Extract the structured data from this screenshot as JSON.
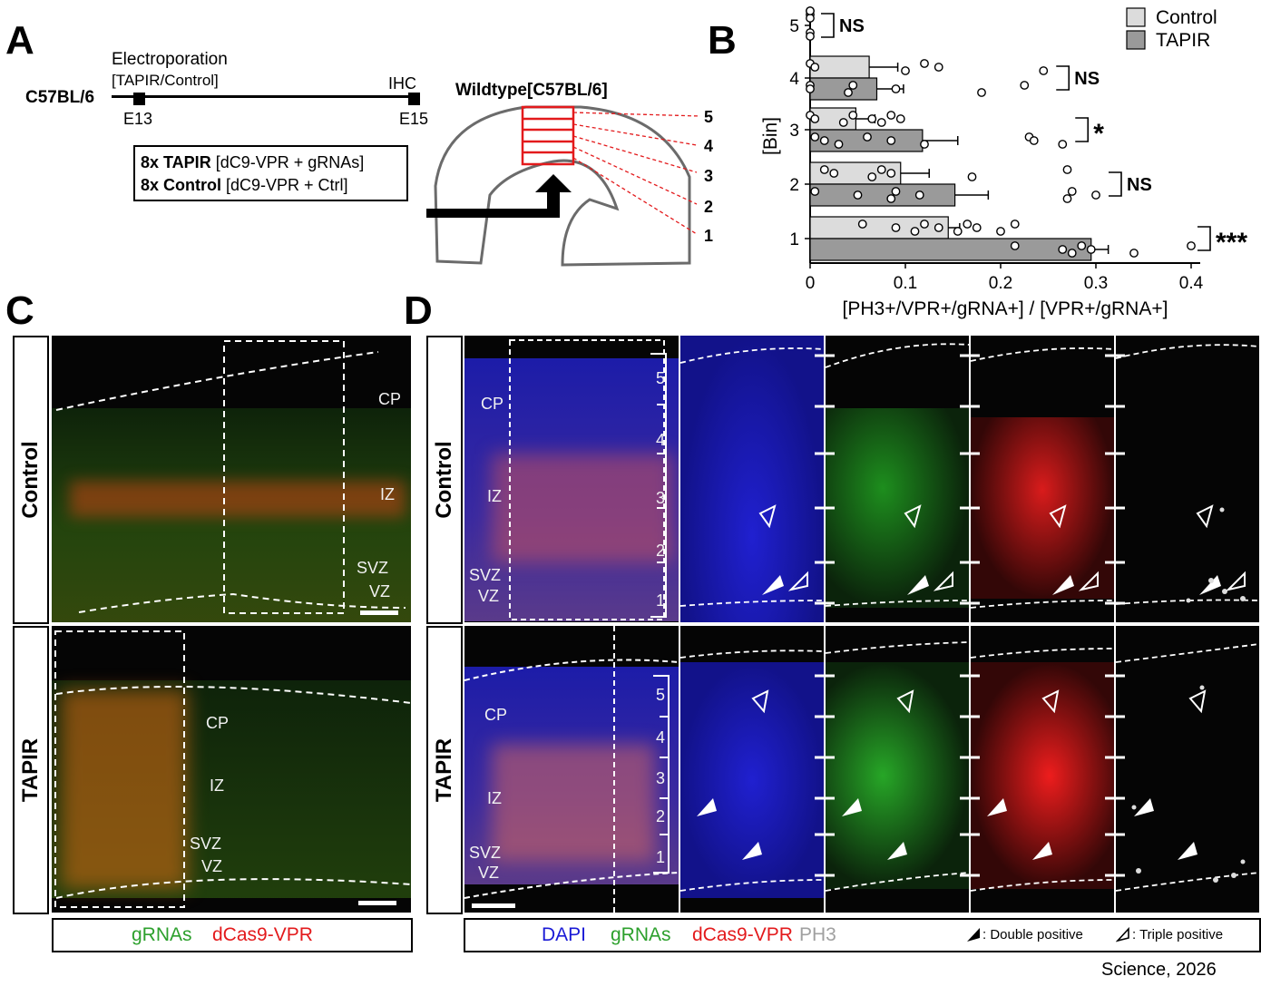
{
  "panels": {
    "a_label": "A",
    "b_label": "B",
    "c_label": "C",
    "d_label": "D"
  },
  "panel_a": {
    "strain": "C57BL/6",
    "electroporation": "Electroporation",
    "electroporation_sub": "[TAPIR/Control]",
    "ihc": "IHC",
    "e13": "E13",
    "e15": "E15",
    "tapir_bold": "8x TAPIR",
    "tapir_rest": " [dC9-VPR + gRNAs]",
    "control_bold": "8x Control",
    "control_rest": " [dC9-VPR + Ctrl]",
    "wildtype": "Wildtype[C57BL/6]",
    "bins": [
      "5",
      "4",
      "3",
      "2",
      "1"
    ]
  },
  "chart_data": {
    "type": "bar",
    "orientation": "horizontal",
    "categories": [
      "1",
      "2",
      "3",
      "4",
      "5"
    ],
    "ylabel": "[Bin]",
    "xlabel": "[PH3+/VPR+/gRNA+] / [VPR+/gRNA+]",
    "xlim": [
      0,
      0.4
    ],
    "xticks": [
      "0",
      "0.1",
      "0.2",
      "0.3",
      "0.4"
    ],
    "series": [
      {
        "name": "Control",
        "color": "#dcdcdc",
        "values": [
          0.145,
          0.095,
          0.048,
          0.062,
          0.0
        ],
        "errors": [
          0.012,
          0.03,
          0.02,
          0.03,
          0.0
        ]
      },
      {
        "name": "TAPIR",
        "color": "#9a9a9a",
        "values": [
          0.295,
          0.152,
          0.118,
          0.07,
          0.0
        ],
        "errors": [
          0.018,
          0.035,
          0.037,
          0.028,
          0.0
        ]
      }
    ],
    "points": {
      "control": [
        [
          0.055,
          0.09,
          0.11,
          0.12,
          0.135,
          0.155,
          0.165,
          0.175,
          0.2,
          0.215
        ],
        [
          0.015,
          0.025,
          0.065,
          0.075,
          0.085,
          0.17,
          0.27
        ],
        [
          0.0,
          0.005,
          0.035,
          0.045,
          0.065,
          0.075,
          0.085,
          0.095
        ],
        [
          0.0,
          0.005,
          0.1,
          0.12,
          0.135,
          0.245
        ],
        [
          0.0,
          0.0,
          0.0,
          0.0
        ]
      ],
      "tapir": [
        [
          0.215,
          0.265,
          0.275,
          0.285,
          0.295,
          0.34,
          0.4
        ],
        [
          0.005,
          0.05,
          0.085,
          0.09,
          0.115,
          0.27,
          0.275,
          0.3
        ],
        [
          0.005,
          0.015,
          0.03,
          0.06,
          0.085,
          0.12,
          0.23,
          0.235,
          0.265
        ],
        [
          0.0,
          0.0,
          0.04,
          0.045,
          0.09,
          0.18,
          0.225
        ],
        [
          0.0,
          0.0
        ]
      ]
    },
    "significance": [
      "***",
      "NS",
      "*",
      "NS",
      "NS"
    ],
    "legend_placement": "top-right"
  },
  "panel_c": {
    "row_labels": [
      "Control",
      "TAPIR"
    ],
    "zones": [
      "CP",
      "IZ",
      "SVZ",
      "VZ"
    ],
    "legend_green": "gRNAs",
    "legend_red": "dCas9-VPR",
    "colors": {
      "green": "#2ca02c",
      "red": "#e31a1c"
    }
  },
  "panel_d": {
    "row_labels": [
      "Control",
      "TAPIR"
    ],
    "zones": [
      "CP",
      "IZ",
      "SVZ",
      "VZ"
    ],
    "bins": [
      "5",
      "4",
      "3",
      "2",
      "1"
    ],
    "legend_dapi": "DAPI",
    "legend_green": "gRNAs",
    "legend_red": "dCas9-VPR",
    "legend_ph3": "PH3",
    "double_positive": ": Double positive",
    "triple_positive": ": Triple positive",
    "colors": {
      "blue": "#1a1ad6",
      "green": "#2ca02c",
      "red": "#e31a1c",
      "gray": "#a0a0a0"
    }
  },
  "citation": "Science, 2026"
}
